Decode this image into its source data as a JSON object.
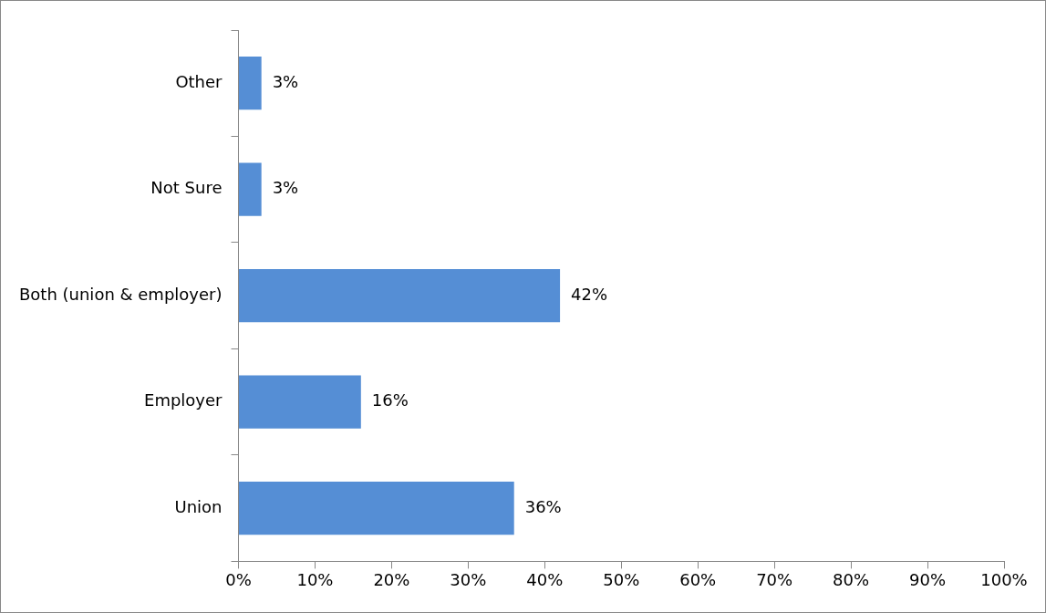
{
  "chart_data": {
    "type": "bar",
    "orientation": "horizontal",
    "categories": [
      "Other",
      "Not Sure",
      "Both (union & employer)",
      "Employer",
      "Union"
    ],
    "values": [
      3,
      3,
      42,
      16,
      36
    ],
    "value_labels": [
      "3%",
      "3%",
      "42%",
      "16%",
      "36%"
    ],
    "color": "#558ed5",
    "xlim": [
      0,
      100
    ],
    "xticks": [
      {
        "value": 0,
        "label": "0%"
      },
      {
        "value": 10,
        "label": "10%"
      },
      {
        "value": 20,
        "label": "20%"
      },
      {
        "value": 30,
        "label": "30%"
      },
      {
        "value": 40,
        "label": "40%"
      },
      {
        "value": 50,
        "label": "50%"
      },
      {
        "value": 60,
        "label": "60%"
      },
      {
        "value": 70,
        "label": "70%"
      },
      {
        "value": 80,
        "label": "80%"
      },
      {
        "value": 90,
        "label": "90%"
      },
      {
        "value": 100,
        "label": "100%"
      }
    ],
    "grid": false,
    "legend": false
  }
}
